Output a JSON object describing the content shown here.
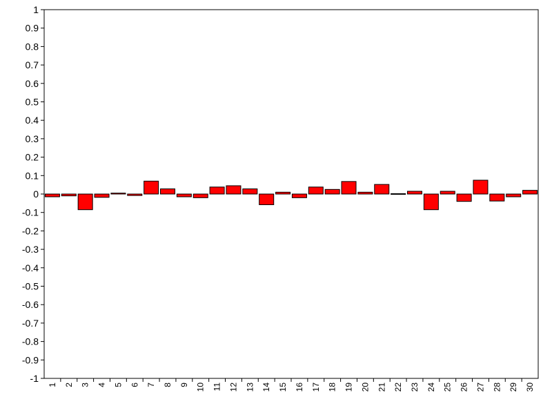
{
  "chart_data": {
    "type": "bar",
    "title": "",
    "xlabel": "",
    "ylabel": "",
    "ylim": [
      -1,
      1
    ],
    "yticks": [
      "1",
      "0.9",
      "0.8",
      "0.7",
      "0.6",
      "0.5",
      "0.4",
      "0.3",
      "0.2",
      "0.1",
      "0",
      "-0.1",
      "-0.2",
      "-0.3",
      "-0.4",
      "-0.5",
      "-0.6",
      "-0.7",
      "-0.8",
      "-0.9",
      "-1"
    ],
    "categories": [
      "1",
      "2",
      "3",
      "4",
      "5",
      "6",
      "7",
      "8",
      "9",
      "10",
      "11",
      "12",
      "13",
      "14",
      "15",
      "16",
      "17",
      "18",
      "19",
      "20",
      "21",
      "22",
      "23",
      "24",
      "25",
      "26",
      "27",
      "28",
      "29",
      "30"
    ],
    "values": [
      -0.015,
      -0.01,
      -0.085,
      -0.018,
      0.005,
      -0.008,
      0.07,
      0.028,
      -0.015,
      -0.02,
      0.038,
      0.045,
      0.028,
      -0.058,
      0.01,
      -0.02,
      0.038,
      0.025,
      0.068,
      0.01,
      0.052,
      0.002,
      0.015,
      -0.085,
      0.015,
      -0.04,
      0.075,
      -0.038,
      -0.015,
      0.02
    ],
    "bar_color": "#ff0000",
    "grid": false,
    "legend": false
  }
}
